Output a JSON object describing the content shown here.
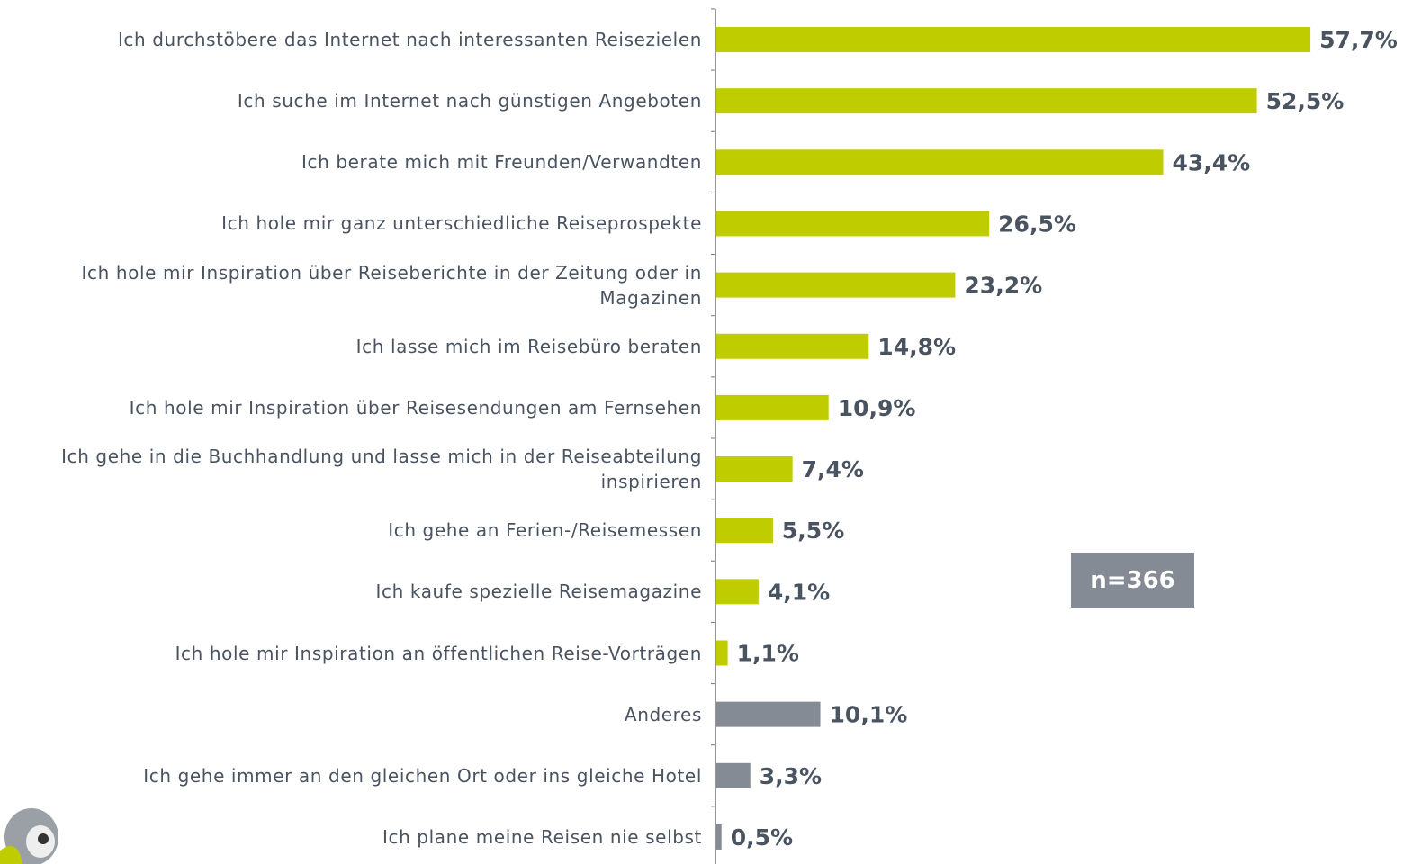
{
  "chart_data": {
    "type": "bar",
    "orientation": "horizontal",
    "categories": [
      "Ich durchstöbere das Internet nach interessanten Reisezielen",
      "Ich suche im Internet nach günstigen Angeboten",
      "Ich berate mich mit Freunden/Verwandten",
      "Ich hole mir ganz unterschiedliche Reiseprospekte",
      "Ich hole mir Inspiration über Reiseberichte in der Zeitung oder in Magazinen",
      "Ich lasse mich im Reisebüro beraten",
      "Ich hole mir Inspiration über Reisesendungen am Fernsehen",
      "Ich gehe in die Buchhandlung und lasse mich in der Reiseabteilung inspirieren",
      "Ich gehe an Ferien-/Reisemessen",
      "Ich kaufe spezielle Reisemagazine",
      "Ich hole mir Inspiration an öffentlichen Reise-Vorträgen",
      "Anderes",
      "Ich gehe immer an den gleichen Ort oder ins gleiche Hotel",
      "Ich plane meine Reisen nie selbst"
    ],
    "values": [
      57.7,
      52.5,
      43.4,
      26.5,
      23.2,
      14.8,
      10.9,
      7.4,
      5.5,
      4.1,
      1.1,
      10.1,
      3.3,
      0.5
    ],
    "value_labels": [
      "57,7%",
      "52,5%",
      "43,4%",
      "26,5%",
      "23,2%",
      "14,8%",
      "10,9%",
      "7,4%",
      "5,5%",
      "4,1%",
      "1,1%",
      "10,1%",
      "3,3%",
      "0,5%"
    ],
    "colors": [
      "#bfcd00",
      "#bfcd00",
      "#bfcd00",
      "#bfcd00",
      "#bfcd00",
      "#bfcd00",
      "#bfcd00",
      "#bfcd00",
      "#bfcd00",
      "#bfcd00",
      "#bfcd00",
      "#858b94",
      "#858b94",
      "#858b94"
    ],
    "annotation": "n=366"
  }
}
